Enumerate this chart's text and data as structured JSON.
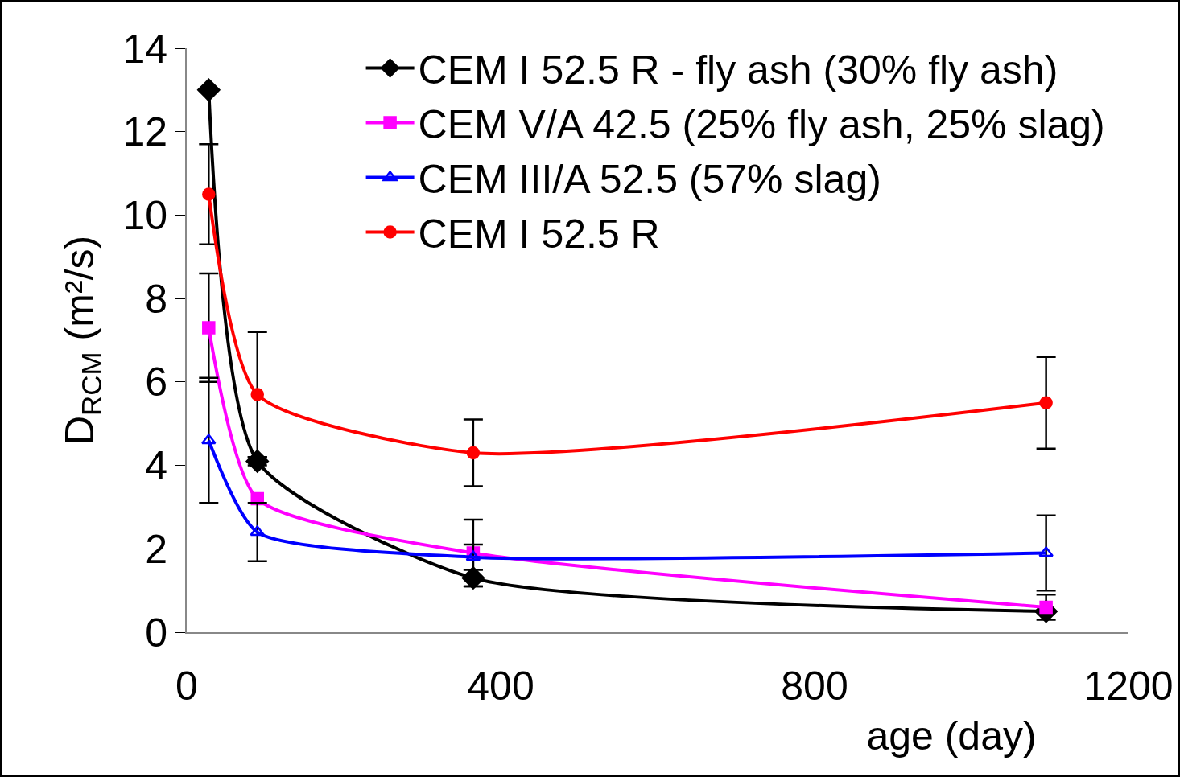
{
  "chart_data": {
    "type": "line",
    "xlabel": "age (day)",
    "ylabel": "D$_{RCM}$ (m²/s)",
    "x": [
      28,
      90,
      365,
      1095
    ],
    "series": [
      {
        "name": "CEM I 52.5 R - fly ash (30% fly ash)",
        "color": "#000000",
        "marker": "diamond",
        "values": [
          13,
          4.1,
          1.3,
          0.5
        ],
        "errors": [
          null,
          0.1,
          0.2,
          null
        ]
      },
      {
        "name": "CEM V/A 42.5 (25% fly ash, 25% slag)",
        "color": "#ff00ff",
        "marker": "square",
        "values": [
          7.3,
          3.2,
          1.9,
          0.6
        ],
        "errors": [
          1.3,
          null,
          0.8,
          0.3
        ]
      },
      {
        "name": "CEM III/A 52.5 (57% slag)",
        "color": "#0000ff",
        "marker": "triangle",
        "values": [
          4.6,
          2.4,
          1.8,
          1.9
        ],
        "errors": [
          1.5,
          0.7,
          0.3,
          0.9
        ]
      },
      {
        "name": "CEM I 52.5 R",
        "color": "#ff0000",
        "marker": "circle",
        "values": [
          10.5,
          5.7,
          4.3,
          5.5
        ],
        "errors": [
          1.2,
          1.5,
          0.8,
          1.1
        ]
      }
    ],
    "xlim": [
      0,
      1200
    ],
    "xticks": [
      0,
      400,
      800,
      1200
    ],
    "ylim": [
      0,
      14
    ],
    "yticks": [
      0,
      2,
      4,
      6,
      8,
      10,
      12,
      14
    ],
    "grid": false,
    "legend": "top right",
    "line_style": "solid"
  }
}
